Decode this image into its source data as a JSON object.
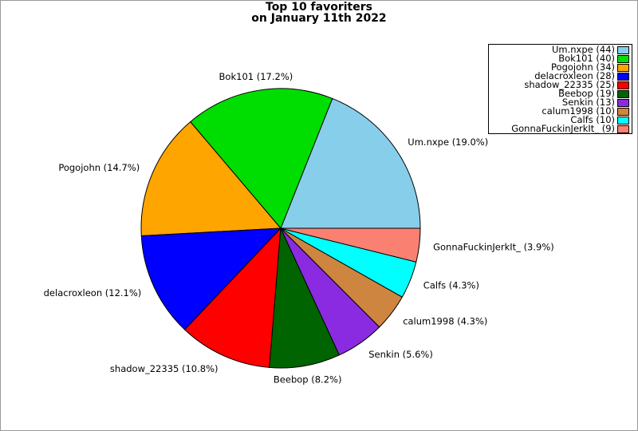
{
  "figure": {
    "background_color": "#ffffff",
    "border_color": "#999999"
  },
  "chart_data": {
    "type": "pie",
    "title": "Top 10 favoriters",
    "subtitle": "on January 11th 2022",
    "start_angle_deg": 0,
    "direction": "counterclockwise",
    "legend_position": "upper right",
    "slices": [
      {
        "name": "Um.nxpe",
        "count": 44,
        "pct_label": "19.0%",
        "slice_label": "Um.nxpe (19.0%)",
        "legend_label": "Um.nxpe (44)",
        "color": "#87CEEB"
      },
      {
        "name": "Bok101",
        "count": 40,
        "pct_label": "17.2%",
        "slice_label": "Bok101 (17.2%)",
        "legend_label": "Bok101 (40)",
        "color": "#00DD00"
      },
      {
        "name": "Pogojohn",
        "count": 34,
        "pct_label": "14.7%",
        "slice_label": "Pogojohn (14.7%)",
        "legend_label": "Pogojohn (34)",
        "color": "#FFA500"
      },
      {
        "name": "delacroxleon",
        "count": 28,
        "pct_label": "12.1%",
        "slice_label": "delacroxleon (12.1%)",
        "legend_label": "delacroxleon (28)",
        "color": "#0000FF"
      },
      {
        "name": "shadow_22335",
        "count": 25,
        "pct_label": "10.8%",
        "slice_label": "shadow_22335 (10.8%)",
        "legend_label": "shadow_22335 (25)",
        "color": "#FF0000"
      },
      {
        "name": "Beebop",
        "count": 19,
        "pct_label": "8.2%",
        "slice_label": "Beebop (8.2%)",
        "legend_label": "Beebop (19)",
        "color": "#006400"
      },
      {
        "name": "Senkin",
        "count": 13,
        "pct_label": "5.6%",
        "slice_label": "Senkin (5.6%)",
        "legend_label": "Senkin (13)",
        "color": "#8A2BE2"
      },
      {
        "name": "calum1998",
        "count": 10,
        "pct_label": "4.3%",
        "slice_label": "calum1998 (4.3%)",
        "legend_label": "calum1998 (10)",
        "color": "#CD853F"
      },
      {
        "name": "Calfs",
        "count": 10,
        "pct_label": "4.3%",
        "slice_label": "Calfs (4.3%)",
        "legend_label": "Calfs (10)",
        "color": "#00FFFF"
      },
      {
        "name": "GonnaFuckinJerkIt_",
        "count": 9,
        "pct_label": "3.9%",
        "slice_label": "GonnaFuckinJerkIt_ (3.9%)",
        "legend_label": "GonnaFuckinJerkIt_ (9)",
        "color": "#FA8072"
      }
    ]
  }
}
